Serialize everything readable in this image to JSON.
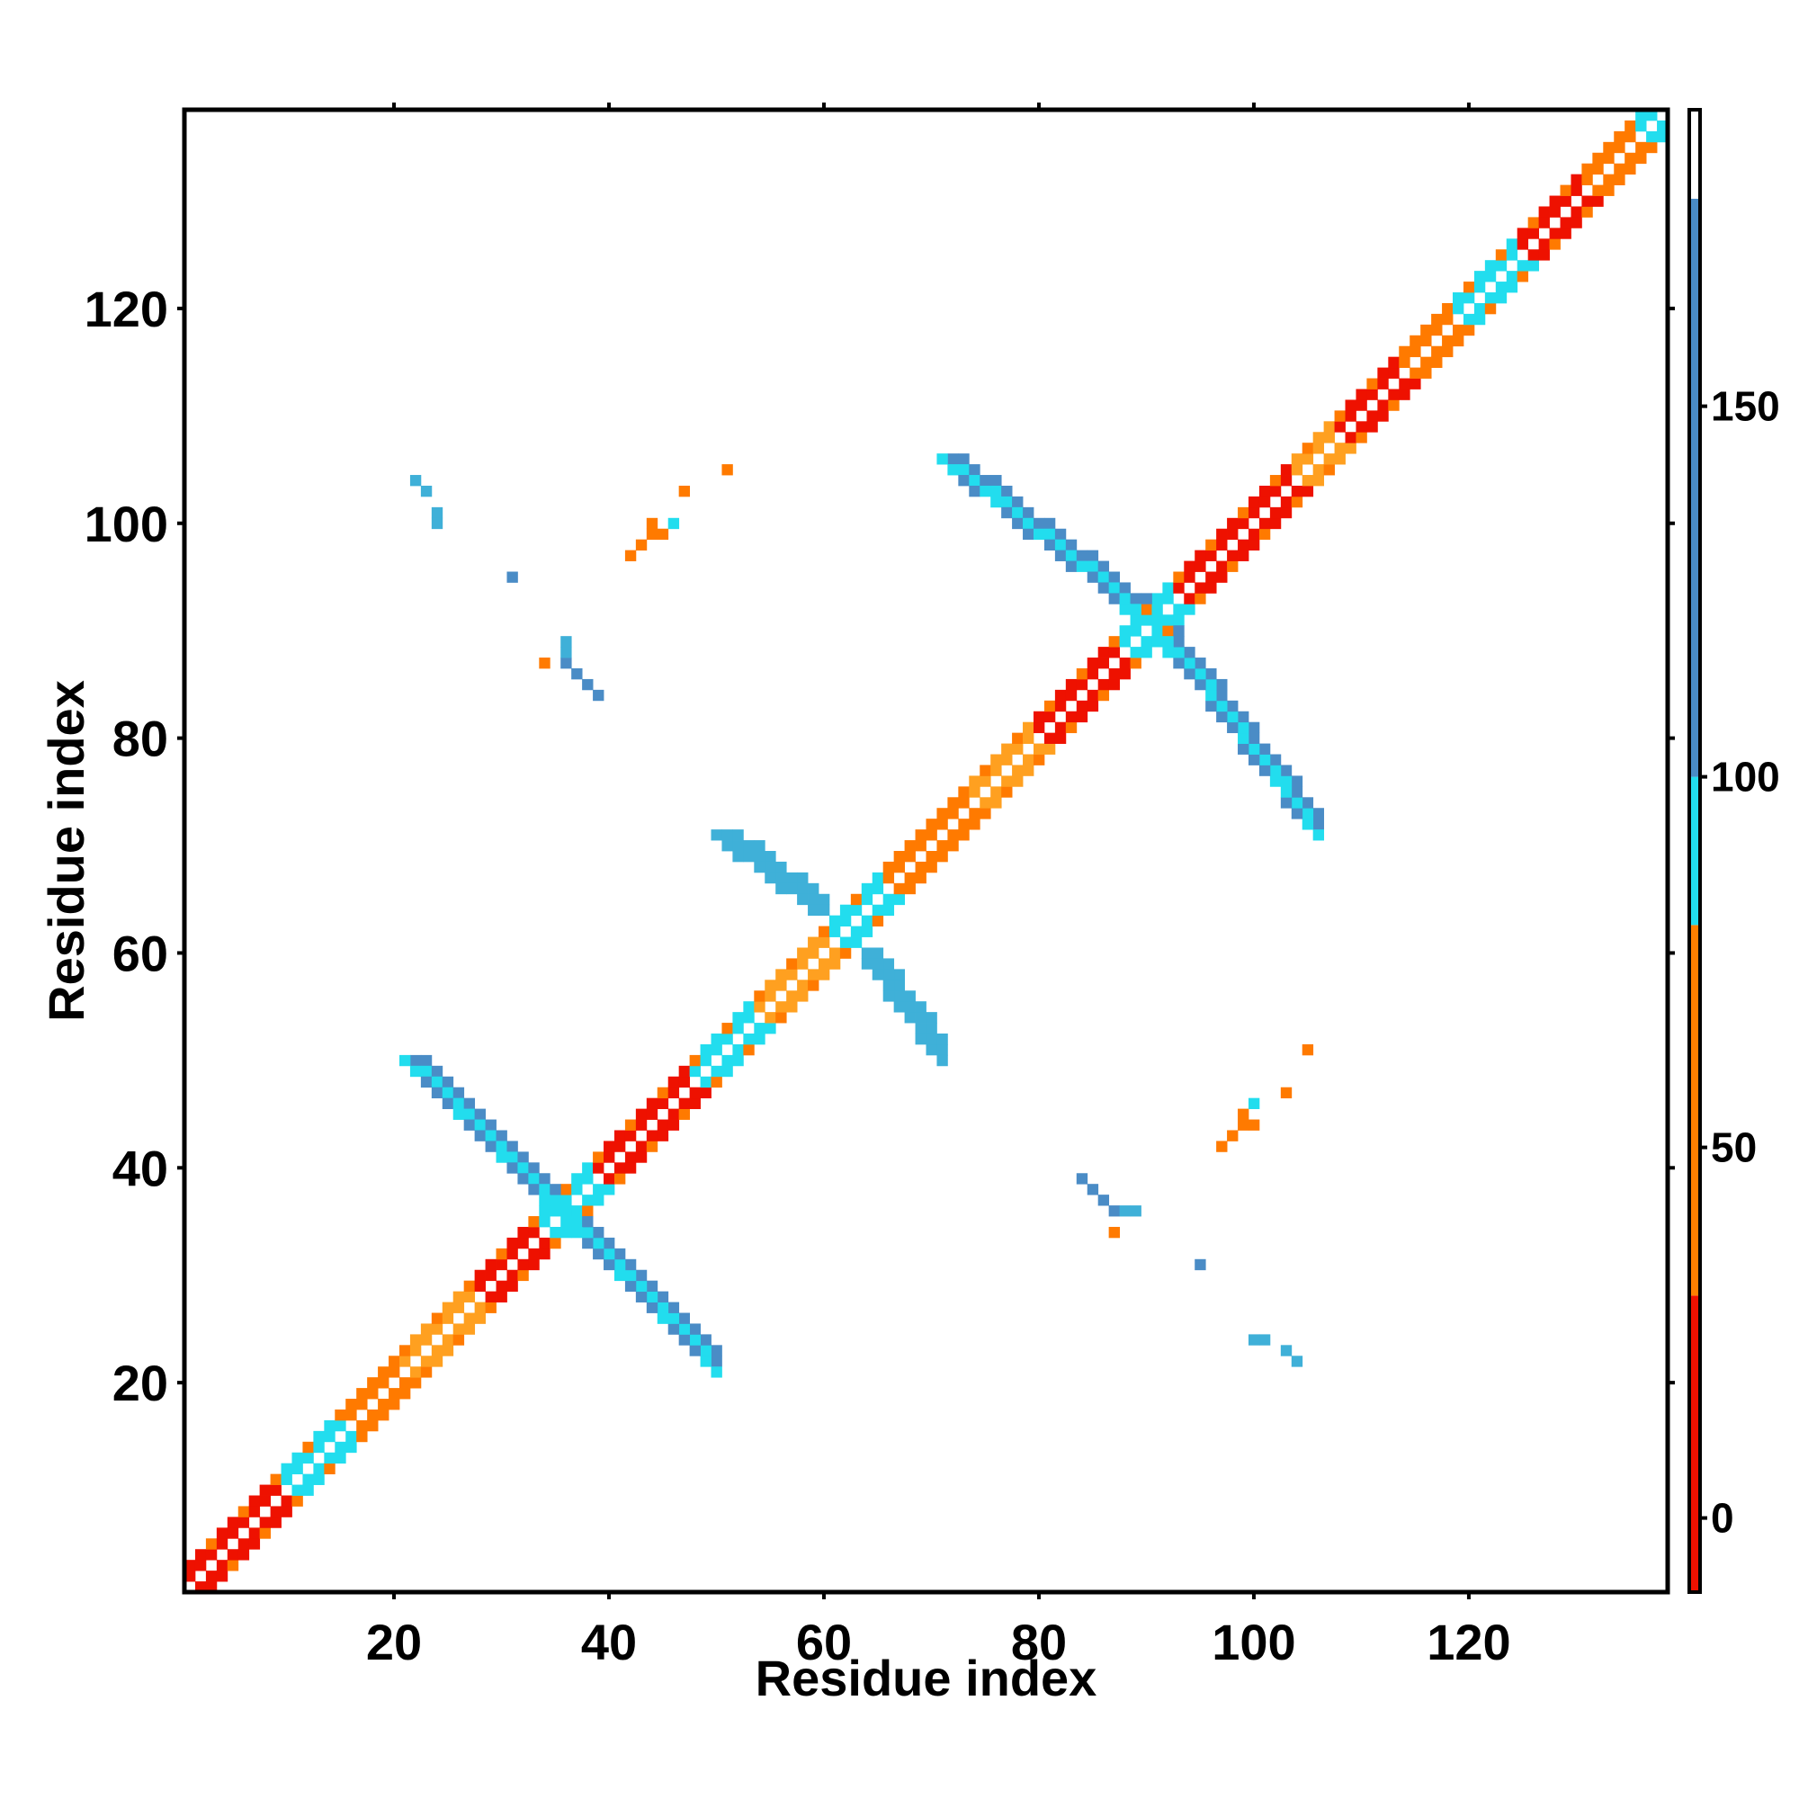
{
  "chart_data": {
    "type": "heatmap",
    "title": "",
    "xlabel": "Residue index",
    "ylabel": "Residue index",
    "xlim": [
      0.5,
      138.5
    ],
    "ylim": [
      0.5,
      138.5
    ],
    "x_ticks": [
      20,
      40,
      60,
      80,
      100,
      120
    ],
    "x_tick_labels": [
      "20",
      "40",
      "60",
      "80",
      "100",
      "120"
    ],
    "y_ticks": [
      20,
      40,
      60,
      80,
      100,
      120
    ],
    "y_tick_labels": [
      "20",
      "40",
      "60",
      "80",
      "100",
      "120"
    ],
    "grid": false,
    "legend": "colorbar-right",
    "colorbar": {
      "range": [
        -10,
        190
      ],
      "ticks": [
        0,
        50,
        100,
        150
      ],
      "tick_labels": [
        "0",
        "50",
        "100",
        "150"
      ],
      "bands": [
        {
          "from": -10,
          "to": 30,
          "color": "#ee1100"
        },
        {
          "from": 30,
          "to": 80,
          "color": "#ff8000"
        },
        {
          "from": 80,
          "to": 100,
          "color": "#22ddee"
        },
        {
          "from": 100,
          "to": 178,
          "color": "#4a8cc6"
        },
        {
          "from": 178,
          "to": 190,
          "color": "#ffffff"
        }
      ]
    },
    "cell_colors": {
      "red": "#ee1100",
      "orange": "#ff7a00",
      "light_orange": "#ffa020",
      "cyan": "#22ddee",
      "steel": "#4a8cc6",
      "mid_blue": "#3fb0d8"
    },
    "diagonal_bands": [
      {
        "from": 1,
        "to": 10,
        "color": "red"
      },
      {
        "from": 10,
        "to": 16,
        "color": "cyan"
      },
      {
        "from": 16,
        "to": 21,
        "color": "orange"
      },
      {
        "from": 21,
        "to": 28,
        "color": "light_orange"
      },
      {
        "from": 28,
        "to": 34,
        "color": "red"
      },
      {
        "from": 34,
        "to": 39,
        "color": "cyan"
      },
      {
        "from": 39,
        "to": 48,
        "color": "red"
      },
      {
        "from": 48,
        "to": 54,
        "color": "cyan"
      },
      {
        "from": 54,
        "to": 61,
        "color": "light_orange"
      },
      {
        "from": 61,
        "to": 66,
        "color": "cyan"
      },
      {
        "from": 66,
        "to": 74,
        "color": "orange"
      },
      {
        "from": 74,
        "to": 80,
        "color": "light_orange"
      },
      {
        "from": 80,
        "to": 88,
        "color": "red"
      },
      {
        "from": 88,
        "to": 93,
        "color": "cyan"
      },
      {
        "from": 93,
        "to": 104,
        "color": "red"
      },
      {
        "from": 104,
        "to": 108,
        "color": "light_orange"
      },
      {
        "from": 108,
        "to": 114,
        "color": "red"
      },
      {
        "from": 114,
        "to": 119,
        "color": "orange"
      },
      {
        "from": 119,
        "to": 125,
        "color": "cyan"
      },
      {
        "from": 125,
        "to": 131,
        "color": "red"
      },
      {
        "from": 131,
        "to": 136,
        "color": "orange"
      },
      {
        "from": 136,
        "to": 139,
        "color": "cyan"
      }
    ],
    "antiparallel_contacts": [
      {
        "x_start": 22,
        "x_end": 36,
        "y_start": 50,
        "y_end": 36,
        "color": "steel",
        "edge": "cyan"
      },
      {
        "x_start": 72,
        "x_end": 91,
        "y_start": 106,
        "y_end": 91,
        "color": "steel",
        "edge": "cyan"
      },
      {
        "x_start": 51,
        "x_end": 59,
        "y_start": 71,
        "y_end": 65,
        "color": "mid_blue",
        "edge": "mid_blue"
      }
    ],
    "patches": [
      {
        "x": [
          36,
          37,
          38,
          39
        ],
        "y": [
          87,
          86,
          85,
          84
        ],
        "color": "steel"
      },
      {
        "x": [
          36
        ],
        "y": [
          88,
          89
        ],
        "color": "mid_blue"
      },
      {
        "x": [
          34
        ],
        "y": [
          87
        ],
        "color": "orange"
      },
      {
        "x": [
          22,
          23
        ],
        "y": [
          104,
          103
        ],
        "color": "mid_blue"
      },
      {
        "x": [
          24
        ],
        "y": [
          101,
          100
        ],
        "color": "mid_blue"
      },
      {
        "x": [
          31
        ],
        "y": [
          95
        ],
        "color": "steel"
      },
      {
        "x": [
          42,
          43,
          44
        ],
        "y": [
          97,
          98,
          100
        ],
        "color": "orange"
      },
      {
        "x": [
          44,
          45
        ],
        "y": [
          99,
          99
        ],
        "color": "orange"
      },
      {
        "x": [
          47
        ],
        "y": [
          103
        ],
        "color": "orange"
      },
      {
        "x": [
          46
        ],
        "y": [
          100
        ],
        "color": "cyan"
      },
      {
        "x": [
          51
        ],
        "y": [
          105
        ],
        "color": "orange"
      }
    ]
  }
}
